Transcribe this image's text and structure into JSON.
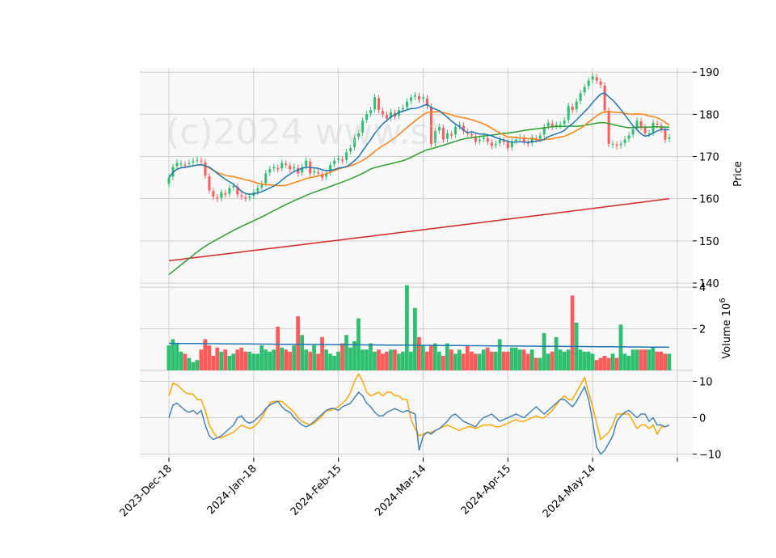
{
  "chart_data": {
    "type": "candlestick",
    "watermark": "(c)2024 www.st",
    "x_tick_labels": [
      "2023-Dec-18",
      "2024-Jan-18",
      "2024-Feb-15",
      "2024-Mar-14",
      "2024-Apr-15",
      "2024-May-14"
    ],
    "x_tick_index": [
      0,
      21,
      42,
      63,
      84,
      105
    ],
    "bar_count": 125,
    "colors": {
      "up": "#2fbf71",
      "down": "#ff5a5a",
      "ma_short": "#1f77b4",
      "ma_mid": "#ff7f0e",
      "ma_long": "#2ca02c",
      "ma_200": "#d62728",
      "volume_avg": "#1f77b4",
      "osc_fast": "#4682b4",
      "osc_slow": "#ffa500",
      "panel_bg": "#f8f8f8",
      "grid": "#d0d0d0"
    },
    "price_panel": {
      "ylabel": "Price",
      "ylim": [
        140,
        191
      ],
      "yticks": [
        140,
        150,
        160,
        170,
        180,
        190
      ],
      "close": [
        165.0,
        167.5,
        168.5,
        168.3,
        168.0,
        168.4,
        168.9,
        169.2,
        168.8,
        165.5,
        162.0,
        160.5,
        160.0,
        161.5,
        161.0,
        162.5,
        163.0,
        161.0,
        160.5,
        160.0,
        160.5,
        161.5,
        162.5,
        163.5,
        166.0,
        167.0,
        167.5,
        167.0,
        168.5,
        168.0,
        167.0,
        167.5,
        166.0,
        167.5,
        169.0,
        166.0,
        166.5,
        166.0,
        165.0,
        166.0,
        168.0,
        169.0,
        169.5,
        169.0,
        171.0,
        172.0,
        174.5,
        175.5,
        178.5,
        180.0,
        181.0,
        184.0,
        181.0,
        180.0,
        179.0,
        180.5,
        179.5,
        181.0,
        181.5,
        183.0,
        184.0,
        184.5,
        183.5,
        184.0,
        182.0,
        173.0,
        176.0,
        177.0,
        174.0,
        175.5,
        175.0,
        177.0,
        177.5,
        176.0,
        175.5,
        175.0,
        173.5,
        174.0,
        174.5,
        173.5,
        172.5,
        173.0,
        174.0,
        173.5,
        172.0,
        173.5,
        174.0,
        174.5,
        173.5,
        173.0,
        174.5,
        174.0,
        175.0,
        177.0,
        178.0,
        177.0,
        177.5,
        177.5,
        178.5,
        182.0,
        181.0,
        183.0,
        185.0,
        186.5,
        188.0,
        189.0,
        188.0,
        187.0,
        181.0,
        173.0,
        173.0,
        172.5,
        173.0,
        174.0,
        175.0,
        176.5,
        178.5,
        177.0,
        175.5,
        175.5,
        178.0,
        177.5,
        176.5,
        174.0,
        174.5
      ]
    },
    "volume_panel": {
      "ylabel": "Volume  10^6",
      "ylim": [
        0,
        4.2
      ],
      "yticks": [
        2,
        4
      ],
      "values": [
        1.2,
        1.5,
        1.3,
        0.9,
        0.8,
        0.6,
        0.4,
        0.5,
        1.0,
        1.5,
        1.2,
        0.7,
        1.1,
        0.9,
        1.0,
        0.7,
        0.8,
        1.0,
        1.1,
        0.9,
        0.9,
        0.8,
        0.8,
        1.2,
        1.0,
        0.9,
        1.0,
        2.1,
        1.1,
        1.0,
        0.9,
        1.2,
        2.6,
        1.7,
        1.0,
        0.9,
        1.2,
        0.8,
        1.6,
        1.0,
        0.8,
        0.7,
        0.9,
        1.3,
        1.7,
        1.1,
        1.4,
        2.5,
        1.0,
        1.0,
        1.3,
        0.9,
        1.0,
        0.8,
        0.9,
        1.0,
        1.0,
        0.8,
        0.9,
        4.1,
        0.9,
        3.0,
        1.6,
        1.2,
        0.9,
        1.2,
        1.3,
        0.9,
        0.7,
        1.3,
        1.0,
        0.8,
        1.0,
        0.8,
        1.2,
        0.9,
        0.8,
        0.8,
        1.0,
        1.1,
        0.9,
        0.9,
        1.5,
        0.9,
        0.9,
        1.1,
        1.1,
        1.0,
        1.0,
        0.8,
        1.0,
        0.6,
        0.6,
        1.8,
        0.8,
        0.9,
        1.6,
        1.0,
        0.9,
        1.0,
        3.6,
        2.3,
        1.0,
        0.9,
        0.9,
        0.8,
        0.5,
        0.6,
        0.7,
        0.6,
        0.8,
        0.6,
        2.2,
        0.8,
        0.7,
        1.0,
        1.0,
        1.0,
        1.0,
        1.0,
        1.1,
        0.9,
        0.9,
        0.8,
        0.8
      ]
    },
    "oscillator_panel": {
      "ylim": [
        -11,
        13
      ],
      "yticks": [
        -10,
        0,
        10
      ],
      "fast": [
        0,
        3.5,
        4,
        3,
        2,
        1.5,
        2,
        1,
        2,
        -2,
        -5,
        -6,
        -5.5,
        -5,
        -4,
        -3,
        -2,
        0,
        0.5,
        -1,
        -1.5,
        -1,
        0,
        1,
        2.5,
        3.5,
        4,
        4.5,
        3,
        2,
        1.5,
        0,
        -1,
        -2,
        -2.5,
        -2,
        -1,
        0,
        1,
        2,
        2.5,
        2.5,
        2,
        3,
        3.5,
        4,
        5.5,
        7,
        6,
        4,
        3,
        1.5,
        0.5,
        0.5,
        1.5,
        2,
        2.5,
        2,
        1.5,
        2,
        1.5,
        1,
        -9,
        -5,
        -4,
        -4.5,
        -3.5,
        -3,
        -2,
        -1,
        0.5,
        1,
        0,
        -1,
        -1.5,
        -2,
        -2.5,
        -1,
        0,
        0.5,
        1,
        0,
        -1,
        -0.5,
        0,
        0.5,
        1,
        0.5,
        0,
        1,
        2,
        3,
        2,
        1,
        2,
        3,
        4,
        5,
        5,
        4,
        3,
        4.5,
        6.5,
        8.5,
        5,
        -1,
        -8,
        -10,
        -9,
        -7,
        -5,
        -1,
        0.5,
        1.5,
        2,
        1,
        0,
        1,
        1,
        -1,
        0,
        -2,
        -2,
        -2.5,
        -2
      ],
      "slow": [
        6,
        9.5,
        9,
        8,
        7,
        6.5,
        6.5,
        5,
        5,
        2,
        -2,
        -4,
        -5.5,
        -5.5,
        -5,
        -4.5,
        -4,
        -3,
        -2,
        -2.5,
        -3,
        -2.5,
        -1.5,
        0,
        2,
        4,
        4.5,
        4.5,
        4.5,
        3.5,
        2.5,
        1.5,
        0,
        -1,
        -1.5,
        -2,
        -1.5,
        -0.5,
        0.5,
        2,
        2,
        2.5,
        3,
        4,
        5,
        7,
        10,
        12,
        10,
        7,
        6,
        6.5,
        7,
        6,
        7,
        7,
        6,
        6,
        5,
        5,
        -0.5,
        -3,
        -5,
        -4.5,
        -4,
        -4,
        -3.5,
        -3,
        -2.5,
        -2,
        -2.5,
        -3,
        -3.5,
        -3,
        -2.5,
        -2.5,
        -3,
        -2.5,
        -2,
        -2,
        -2,
        -2.5,
        -2.5,
        -2,
        -1.5,
        -1,
        -0.5,
        -1,
        -1,
        -0.5,
        0,
        0.5,
        0,
        0,
        1,
        2,
        3.5,
        5,
        6,
        5,
        5,
        7,
        9,
        11,
        7,
        3,
        -1.5,
        -6,
        -5,
        -4,
        -2,
        1,
        1,
        1,
        1,
        -1,
        -3,
        -2,
        -2,
        -3,
        -2,
        -4.5,
        -2.5,
        -2.5,
        -2
      ]
    }
  }
}
